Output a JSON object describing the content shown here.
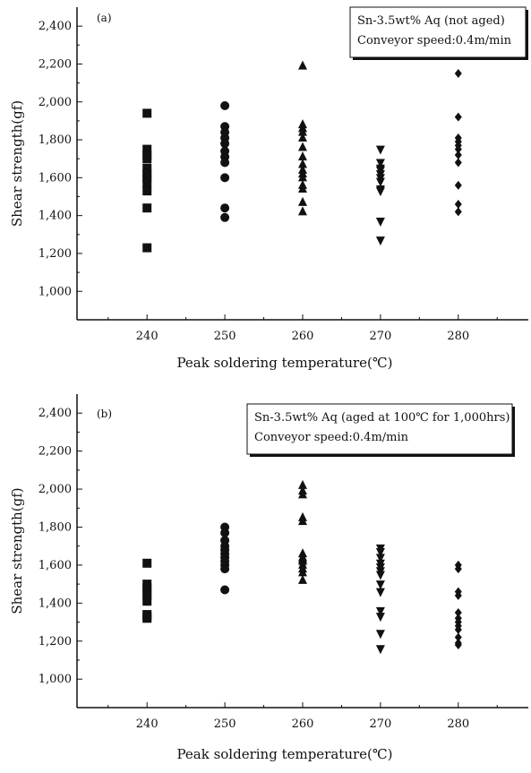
{
  "chart_data": [
    {
      "type": "scatter",
      "panel_label": "(a)",
      "xlabel": "Peak soldering temperature(℃)",
      "ylabel": "Shear strength(gf)",
      "x_ticks": [
        "240",
        "250",
        "260",
        "270",
        "280"
      ],
      "y_ticks": [
        "1,000",
        "1,200",
        "1,400",
        "1,600",
        "1,800",
        "2,000",
        "2,200",
        "2,400"
      ],
      "xlim": [
        231,
        289
      ],
      "ylim": [
        850,
        2500
      ],
      "grid": false,
      "legend_lines": [
        "Sn-3.5wt% Aq (not aged)",
        "Conveyor speed:0.4m/min"
      ],
      "legend_position": "top-right",
      "series": [
        {
          "x": 240,
          "marker": "square",
          "values": [
            1940,
            1750,
            1720,
            1700,
            1650,
            1620,
            1600,
            1570,
            1530,
            1440,
            1230
          ]
        },
        {
          "x": 250,
          "marker": "circle",
          "values": [
            1980,
            1870,
            1840,
            1810,
            1780,
            1740,
            1710,
            1680,
            1600,
            1440,
            1390
          ]
        },
        {
          "x": 260,
          "marker": "triangle-up",
          "values": [
            2190,
            1880,
            1860,
            1840,
            1810,
            1760,
            1710,
            1670,
            1640,
            1620,
            1600,
            1560,
            1540,
            1470,
            1420
          ]
        },
        {
          "x": 270,
          "marker": "triangle-down",
          "values": [
            1750,
            1680,
            1650,
            1640,
            1620,
            1600,
            1580,
            1540,
            1530,
            1370,
            1270
          ]
        },
        {
          "x": 280,
          "marker": "diamond",
          "values": [
            2150,
            1920,
            1810,
            1790,
            1770,
            1750,
            1720,
            1680,
            1560,
            1460,
            1420
          ]
        }
      ]
    },
    {
      "type": "scatter",
      "panel_label": "(b)",
      "xlabel": "Peak soldering temperature(℃)",
      "ylabel": "Shear strength(gf)",
      "x_ticks": [
        "240",
        "250",
        "260",
        "270",
        "280"
      ],
      "y_ticks": [
        "1,000",
        "1,200",
        "1,400",
        "1,600",
        "1,800",
        "2,000",
        "2,200",
        "2,400"
      ],
      "xlim": [
        231,
        289
      ],
      "ylim": [
        850,
        2500
      ],
      "grid": false,
      "legend_lines": [
        "Sn-3.5wt% Aq (aged at 100℃ for 1,000hrs)",
        "Conveyor speed:0.4m/min"
      ],
      "legend_position": "top-right",
      "series": [
        {
          "x": 240,
          "marker": "square",
          "values": [
            1610,
            1500,
            1480,
            1460,
            1440,
            1410,
            1340,
            1330,
            1320
          ]
        },
        {
          "x": 250,
          "marker": "circle",
          "values": [
            1800,
            1770,
            1730,
            1700,
            1680,
            1660,
            1640,
            1620,
            1600,
            1580,
            1470
          ]
        },
        {
          "x": 260,
          "marker": "triangle-up",
          "values": [
            2020,
            1990,
            1970,
            1850,
            1830,
            1660,
            1640,
            1630,
            1620,
            1600,
            1580,
            1560,
            1520
          ]
        },
        {
          "x": 270,
          "marker": "triangle-down",
          "values": [
            1690,
            1670,
            1640,
            1610,
            1590,
            1570,
            1550,
            1500,
            1460,
            1360,
            1330,
            1240,
            1160
          ]
        },
        {
          "x": 280,
          "marker": "diamond",
          "values": [
            1600,
            1580,
            1460,
            1440,
            1350,
            1320,
            1300,
            1280,
            1260,
            1220,
            1190,
            1180
          ]
        }
      ]
    }
  ]
}
